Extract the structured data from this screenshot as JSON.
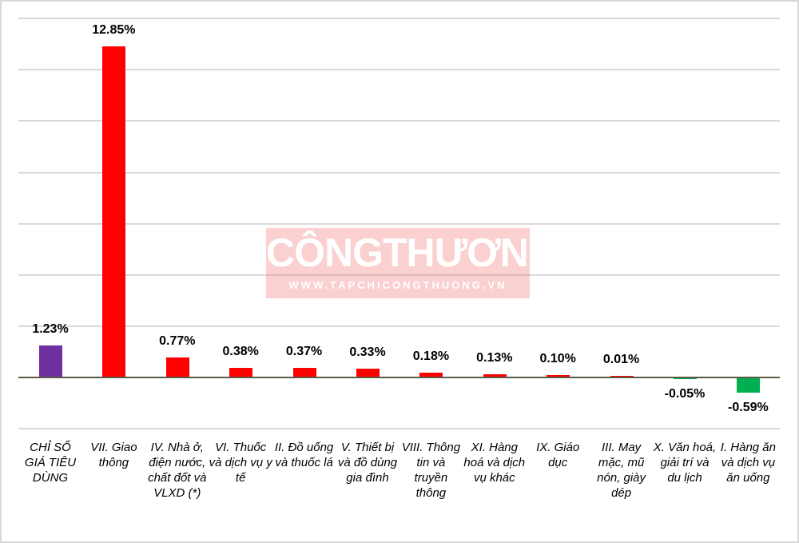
{
  "chart_data": {
    "type": "bar",
    "title": "",
    "xlabel": "",
    "ylabel": "",
    "ylim": [
      -1.5,
      14
    ],
    "grid": true,
    "legend": null,
    "categories": [
      "CHỈ SỐ GIÁ TIÊU DÙNG",
      "VII. Giao thông",
      "IV. Nhà ở, điện nước, chất đốt và VLXD (*)",
      "VI. Thuốc và dịch vụ y tế",
      "II. Đồ uống và thuốc lá",
      "V. Thiết bị và đồ dùng gia đình",
      "VIII. Thông tin và truyền thông",
      "XI. Hàng hoá và dịch vụ khác",
      "IX. Giáo dục",
      "III. May mặc, mũ nón, giày dép",
      "X. Văn hoá, giải trí và du lịch",
      "I. Hàng ăn và dịch vụ ăn uống"
    ],
    "values": [
      1.23,
      12.85,
      0.77,
      0.38,
      0.37,
      0.33,
      0.18,
      0.13,
      0.1,
      0.01,
      -0.05,
      -0.59
    ],
    "value_labels": [
      "1.23%",
      "12.85%",
      "0.77%",
      "0.38%",
      "0.37%",
      "0.33%",
      "0.18%",
      "0.13%",
      "0.10%",
      "0.01%",
      "-0.05%",
      "-0.59%"
    ],
    "colors": [
      "#7030a0",
      "#ff0000",
      "#ff0000",
      "#ff0000",
      "#ff0000",
      "#ff0000",
      "#ff0000",
      "#ff0000",
      "#ff0000",
      "#ff0000",
      "#00b050",
      "#00b050"
    ]
  },
  "watermark": {
    "title": "CÔNGTHƯƠNG",
    "url": "WWW.TAPCHICONGTHUONG.VN"
  }
}
